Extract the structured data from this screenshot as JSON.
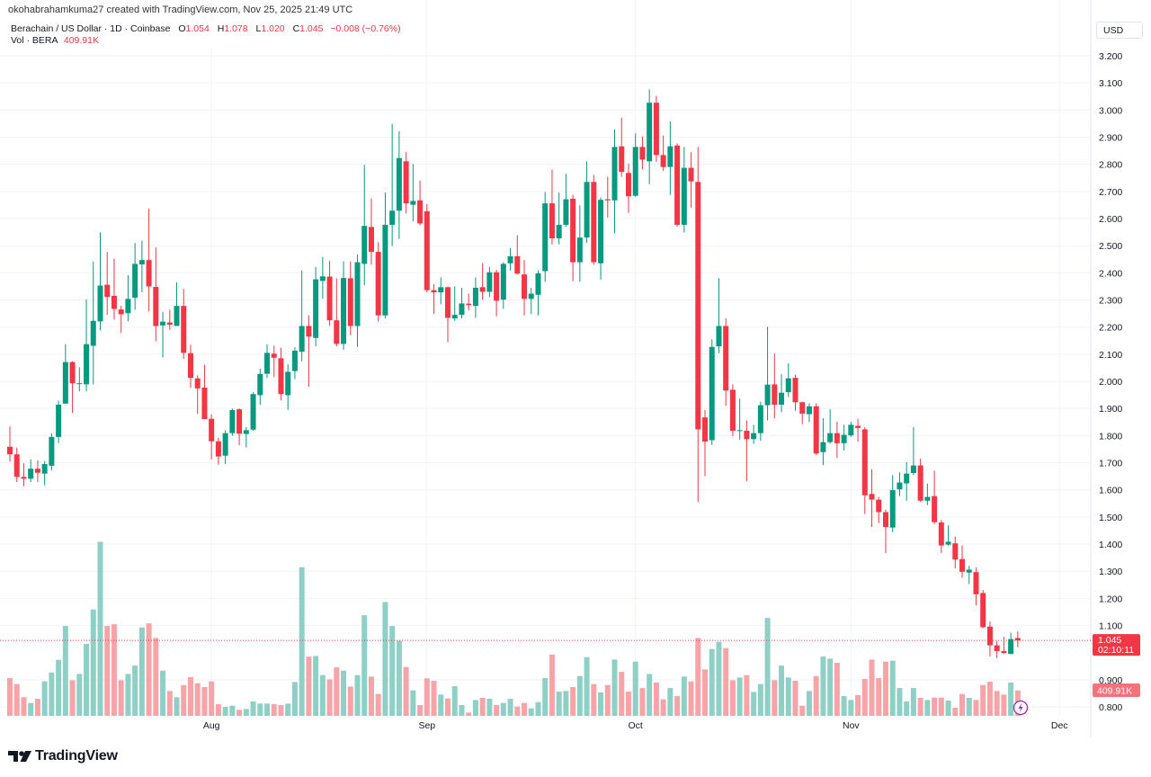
{
  "header": {
    "credit": "okohabrahamkuma27 created with TradingView.com, Nov 25, 2025 21:49 UTC"
  },
  "legend": {
    "symbol": "Berachain / US Dollar · 1D · Coinbase",
    "open_label": "O",
    "open": "1.054",
    "high_label": "H",
    "high": "1.078",
    "low_label": "L",
    "low": "1.020",
    "close_label": "C",
    "close": "1.045",
    "change": "−0.008 (−0.76%)",
    "volume_label": "Vol · BERA",
    "volume": "409.91K"
  },
  "currency_button": "USD",
  "price_label": {
    "price": "1.045",
    "countdown": "02:10:11"
  },
  "volume_label": "409.91K",
  "branding": "TradingView",
  "colors": {
    "up": "#089981",
    "down": "#f23645",
    "volume_up": "#8fd0c6",
    "volume_down": "#f7a4a9",
    "grid": "#f0f3fa",
    "price_line": "#f23645"
  },
  "chart_data": {
    "type": "candlestick",
    "title": "",
    "xlabel": "",
    "ylabel": "",
    "grid": true,
    "y_axis_position": "right",
    "ylim": [
      0.77,
      3.27
    ],
    "y_ticks": [
      "3.200",
      "3.100",
      "3.000",
      "2.900",
      "2.800",
      "2.700",
      "2.600",
      "2.500",
      "2.400",
      "2.300",
      "2.200",
      "2.100",
      "2.000",
      "1.900",
      "1.800",
      "1.700",
      "1.600",
      "1.500",
      "1.400",
      "1.300",
      "1.200",
      "1.100",
      "0.900",
      "0.800"
    ],
    "x_ticks": [
      {
        "label": "Aug",
        "date": "2025-08-01"
      },
      {
        "label": "Sep",
        "date": "2025-09-01"
      },
      {
        "label": "Oct",
        "date": "2025-10-01"
      },
      {
        "label": "Nov",
        "date": "2025-11-01"
      },
      {
        "label": "Dec",
        "date": "2025-12-01"
      }
    ],
    "volume_unit": "K",
    "fields": [
      "date",
      "open",
      "high",
      "low",
      "close",
      "volume"
    ],
    "candles": [
      [
        "2025-07-03",
        1.759,
        1.834,
        1.704,
        1.731,
        609
      ],
      [
        "2025-07-04",
        1.731,
        1.756,
        1.629,
        1.648,
        512
      ],
      [
        "2025-07-05",
        1.648,
        1.698,
        1.613,
        1.641,
        300
      ],
      [
        "2025-07-06",
        1.641,
        1.712,
        1.629,
        1.678,
        208
      ],
      [
        "2025-07-07",
        1.678,
        1.709,
        1.629,
        1.663,
        275
      ],
      [
        "2025-07-08",
        1.66,
        1.706,
        1.617,
        1.695,
        556
      ],
      [
        "2025-07-09",
        1.689,
        1.809,
        1.671,
        1.795,
        700
      ],
      [
        "2025-07-10",
        1.795,
        1.929,
        1.772,
        1.914,
        903
      ],
      [
        "2025-07-11",
        1.918,
        2.137,
        1.918,
        2.071,
        1449
      ],
      [
        "2025-07-12",
        2.071,
        2.074,
        1.883,
        1.993,
        575
      ],
      [
        "2025-07-13",
        1.991,
        2.052,
        1.963,
        1.993,
        676
      ],
      [
        "2025-07-14",
        1.989,
        2.302,
        1.963,
        2.137,
        1159
      ],
      [
        "2025-07-15",
        2.131,
        2.442,
        1.989,
        2.223,
        1715
      ],
      [
        "2025-07-16",
        2.221,
        2.549,
        2.188,
        2.353,
        2806
      ],
      [
        "2025-07-17",
        2.356,
        2.477,
        2.245,
        2.311,
        1449
      ],
      [
        "2025-07-18",
        2.315,
        2.452,
        2.228,
        2.267,
        1478
      ],
      [
        "2025-07-19",
        2.265,
        2.278,
        2.179,
        2.247,
        575
      ],
      [
        "2025-07-20",
        2.251,
        2.391,
        2.221,
        2.304,
        676
      ],
      [
        "2025-07-21",
        2.308,
        2.51,
        2.264,
        2.433,
        811
      ],
      [
        "2025-07-22",
        2.431,
        2.519,
        2.328,
        2.447,
        1425
      ],
      [
        "2025-07-23",
        2.447,
        2.637,
        2.258,
        2.35,
        1492
      ],
      [
        "2025-07-24",
        2.348,
        2.494,
        2.148,
        2.204,
        1256
      ],
      [
        "2025-07-25",
        2.206,
        2.256,
        2.088,
        2.22,
        729
      ],
      [
        "2025-07-26",
        2.217,
        2.264,
        2.19,
        2.209,
        401
      ],
      [
        "2025-07-27",
        2.204,
        2.364,
        2.204,
        2.278,
        300
      ],
      [
        "2025-07-28",
        2.278,
        2.341,
        2.083,
        2.105,
        497
      ],
      [
        "2025-07-29",
        2.104,
        2.135,
        1.977,
        2.013,
        623
      ],
      [
        "2025-07-30",
        2.011,
        2.022,
        1.88,
        1.974,
        526
      ],
      [
        "2025-07-31",
        1.977,
        2.061,
        1.861,
        1.861,
        464
      ],
      [
        "2025-08-01",
        1.862,
        1.878,
        1.712,
        1.779,
        556
      ],
      [
        "2025-08-02",
        1.779,
        1.792,
        1.693,
        1.723,
        188
      ],
      [
        "2025-08-03",
        1.726,
        1.82,
        1.695,
        1.809,
        145
      ],
      [
        "2025-08-04",
        1.809,
        1.9,
        1.8,
        1.894,
        164
      ],
      [
        "2025-08-05",
        1.897,
        1.9,
        1.765,
        1.807,
        97
      ],
      [
        "2025-08-06",
        1.806,
        1.831,
        1.756,
        1.82,
        111
      ],
      [
        "2025-08-07",
        1.822,
        1.96,
        1.818,
        1.953,
        232
      ],
      [
        "2025-08-08",
        1.949,
        2.047,
        1.914,
        2.027,
        198
      ],
      [
        "2025-08-09",
        2.028,
        2.137,
        2.013,
        2.105,
        198
      ],
      [
        "2025-08-10",
        2.102,
        2.132,
        2.015,
        2.087,
        188
      ],
      [
        "2025-08-11",
        2.085,
        2.124,
        1.93,
        1.953,
        174
      ],
      [
        "2025-08-12",
        1.949,
        2.063,
        1.895,
        2.035,
        198
      ],
      [
        "2025-08-13",
        2.038,
        2.126,
        2.008,
        2.113,
        546
      ],
      [
        "2025-08-14",
        2.109,
        2.409,
        2.074,
        2.204,
        2396
      ],
      [
        "2025-08-15",
        2.204,
        2.243,
        1.98,
        2.165,
        956
      ],
      [
        "2025-08-16",
        2.16,
        2.422,
        2.129,
        2.376,
        966
      ],
      [
        "2025-08-17",
        2.37,
        2.459,
        2.304,
        2.387,
        657
      ],
      [
        "2025-08-18",
        2.386,
        2.444,
        2.204,
        2.225,
        589
      ],
      [
        "2025-08-19",
        2.225,
        2.38,
        2.129,
        2.138,
        782
      ],
      [
        "2025-08-20",
        2.138,
        2.442,
        2.116,
        2.381,
        729
      ],
      [
        "2025-08-21",
        2.38,
        2.442,
        2.17,
        2.204,
        473
      ],
      [
        "2025-08-22",
        2.204,
        2.468,
        2.127,
        2.439,
        657
      ],
      [
        "2025-08-23",
        2.433,
        2.798,
        2.354,
        2.573,
        1623
      ],
      [
        "2025-08-24",
        2.569,
        2.674,
        2.43,
        2.477,
        633
      ],
      [
        "2025-08-25",
        2.477,
        2.513,
        2.22,
        2.243,
        353
      ],
      [
        "2025-08-26",
        2.243,
        2.696,
        2.232,
        2.577,
        1835
      ],
      [
        "2025-08-27",
        2.577,
        2.949,
        2.499,
        2.629,
        1449
      ],
      [
        "2025-08-28",
        2.629,
        2.922,
        2.525,
        2.823,
        1212
      ],
      [
        "2025-08-29",
        2.811,
        2.845,
        2.619,
        2.656,
        787
      ],
      [
        "2025-08-30",
        2.651,
        2.801,
        2.59,
        2.665,
        411
      ],
      [
        "2025-08-31",
        2.667,
        2.74,
        2.575,
        2.582,
        174
      ],
      [
        "2025-09-01",
        2.627,
        2.654,
        2.328,
        2.336,
        604
      ],
      [
        "2025-09-02",
        2.336,
        2.358,
        2.248,
        2.328,
        565
      ],
      [
        "2025-09-03",
        2.328,
        2.383,
        2.284,
        2.347,
        343
      ],
      [
        "2025-09-04",
        2.347,
        2.35,
        2.144,
        2.234,
        280
      ],
      [
        "2025-09-05",
        2.232,
        2.35,
        2.223,
        2.245,
        478
      ],
      [
        "2025-09-06",
        2.245,
        2.345,
        2.232,
        2.287,
        174
      ],
      [
        "2025-09-07",
        2.286,
        2.323,
        2.262,
        2.281,
        53
      ],
      [
        "2025-09-08",
        2.278,
        2.383,
        2.234,
        2.345,
        256
      ],
      [
        "2025-09-09",
        2.347,
        2.436,
        2.301,
        2.33,
        290
      ],
      [
        "2025-09-10",
        2.33,
        2.422,
        2.31,
        2.402,
        275
      ],
      [
        "2025-09-11",
        2.402,
        2.411,
        2.24,
        2.297,
        174
      ],
      [
        "2025-09-12",
        2.301,
        2.439,
        2.267,
        2.433,
        208
      ],
      [
        "2025-09-13",
        2.435,
        2.491,
        2.409,
        2.461,
        275
      ],
      [
        "2025-09-14",
        2.461,
        2.538,
        2.394,
        2.397,
        150
      ],
      [
        "2025-09-15",
        2.394,
        2.447,
        2.243,
        2.304,
        208
      ],
      [
        "2025-09-16",
        2.304,
        2.345,
        2.248,
        2.323,
        121
      ],
      [
        "2025-09-17",
        2.319,
        2.409,
        2.243,
        2.398,
        222
      ],
      [
        "2025-09-18",
        2.406,
        2.698,
        2.367,
        2.656,
        609
      ],
      [
        "2025-09-19",
        2.656,
        2.781,
        2.505,
        2.527,
        990
      ],
      [
        "2025-09-20",
        2.527,
        2.696,
        2.505,
        2.577,
        391
      ],
      [
        "2025-09-21",
        2.577,
        2.765,
        2.57,
        2.671,
        401
      ],
      [
        "2025-09-22",
        2.673,
        2.687,
        2.369,
        2.439,
        464
      ],
      [
        "2025-09-23",
        2.439,
        2.649,
        2.367,
        2.53,
        642
      ],
      [
        "2025-09-24",
        2.53,
        2.811,
        2.511,
        2.735,
        947
      ],
      [
        "2025-09-25",
        2.735,
        2.761,
        2.43,
        2.439,
        512
      ],
      [
        "2025-09-26",
        2.435,
        2.678,
        2.375,
        2.669,
        377
      ],
      [
        "2025-09-27",
        2.671,
        2.754,
        2.604,
        2.667,
        497
      ],
      [
        "2025-09-28",
        2.667,
        2.928,
        2.546,
        2.864,
        908
      ],
      [
        "2025-09-29",
        2.866,
        2.972,
        2.754,
        2.772,
        710
      ],
      [
        "2025-09-30",
        2.768,
        2.803,
        2.621,
        2.682,
        391
      ],
      [
        "2025-10-01",
        2.684,
        2.914,
        2.68,
        2.864,
        874
      ],
      [
        "2025-10-02",
        2.864,
        2.903,
        2.781,
        2.817,
        449
      ],
      [
        "2025-10-03",
        2.811,
        3.076,
        2.726,
        3.027,
        676
      ],
      [
        "2025-10-04",
        3.027,
        3.052,
        2.809,
        2.834,
        536
      ],
      [
        "2025-10-05",
        2.834,
        2.905,
        2.776,
        2.79,
        266
      ],
      [
        "2025-10-06",
        2.79,
        2.958,
        2.687,
        2.866,
        449
      ],
      [
        "2025-10-07",
        2.869,
        2.877,
        2.57,
        2.577,
        319
      ],
      [
        "2025-10-08",
        2.577,
        2.864,
        2.549,
        2.787,
        633
      ],
      [
        "2025-10-09",
        2.787,
        2.845,
        2.64,
        2.737,
        556
      ],
      [
        "2025-10-10",
        2.735,
        2.864,
        1.555,
        1.823,
        1256
      ],
      [
        "2025-10-11",
        1.867,
        1.895,
        1.651,
        1.778,
        749
      ],
      [
        "2025-10-12",
        1.783,
        2.155,
        1.765,
        2.127,
        1077
      ],
      [
        "2025-10-13",
        2.129,
        2.38,
        2.104,
        2.204,
        1193
      ],
      [
        "2025-10-14",
        2.204,
        2.232,
        1.91,
        1.966,
        1092
      ],
      [
        "2025-10-15",
        1.969,
        1.989,
        1.798,
        1.818,
        575
      ],
      [
        "2025-10-16",
        1.818,
        1.936,
        1.785,
        1.82,
        618
      ],
      [
        "2025-10-17",
        1.818,
        1.856,
        1.632,
        1.787,
        657
      ],
      [
        "2025-10-18",
        1.787,
        1.84,
        1.77,
        1.809,
        386
      ],
      [
        "2025-10-19",
        1.809,
        1.925,
        1.781,
        1.912,
        512
      ],
      [
        "2025-10-20",
        1.912,
        2.201,
        1.856,
        1.988,
        1579
      ],
      [
        "2025-10-21",
        1.989,
        2.102,
        1.864,
        1.914,
        575
      ],
      [
        "2025-10-22",
        1.914,
        2.027,
        1.886,
        1.958,
        811
      ],
      [
        "2025-10-23",
        1.96,
        2.066,
        1.942,
        2.011,
        618
      ],
      [
        "2025-10-24",
        2.013,
        2.024,
        1.892,
        1.923,
        565
      ],
      [
        "2025-10-25",
        1.923,
        1.925,
        1.842,
        1.881,
        164
      ],
      [
        "2025-10-26",
        1.879,
        1.919,
        1.85,
        1.908,
        401
      ],
      [
        "2025-10-27",
        1.908,
        1.919,
        1.728,
        1.734,
        642
      ],
      [
        "2025-10-28",
        1.739,
        1.864,
        1.691,
        1.776,
        956
      ],
      [
        "2025-10-29",
        1.776,
        1.897,
        1.77,
        1.809,
        922
      ],
      [
        "2025-10-30",
        1.809,
        1.851,
        1.718,
        1.772,
        855
      ],
      [
        "2025-10-31",
        1.772,
        1.84,
        1.745,
        1.803,
        319
      ],
      [
        "2025-11-01",
        1.801,
        1.851,
        1.795,
        1.84,
        256
      ],
      [
        "2025-11-02",
        1.836,
        1.862,
        1.778,
        1.828,
        333
      ],
      [
        "2025-11-03",
        1.823,
        1.831,
        1.511,
        1.58,
        594
      ],
      [
        "2025-11-04",
        1.585,
        1.676,
        1.463,
        1.564,
        908
      ],
      [
        "2025-11-05",
        1.564,
        1.574,
        1.477,
        1.518,
        609
      ],
      [
        "2025-11-06",
        1.518,
        1.527,
        1.367,
        1.463,
        874
      ],
      [
        "2025-11-07",
        1.461,
        1.654,
        1.444,
        1.599,
        889
      ],
      [
        "2025-11-08",
        1.602,
        1.665,
        1.577,
        1.627,
        449
      ],
      [
        "2025-11-09",
        1.624,
        1.702,
        1.56,
        1.66,
        232
      ],
      [
        "2025-11-10",
        1.662,
        1.831,
        1.654,
        1.69,
        449
      ],
      [
        "2025-11-11",
        1.69,
        1.715,
        1.555,
        1.56,
        290
      ],
      [
        "2025-11-12",
        1.56,
        1.623,
        1.544,
        1.574,
        256
      ],
      [
        "2025-11-13",
        1.577,
        1.671,
        1.474,
        1.481,
        295
      ],
      [
        "2025-11-14",
        1.48,
        1.489,
        1.367,
        1.395,
        295
      ],
      [
        "2025-11-15",
        1.398,
        1.469,
        1.395,
        1.409,
        246
      ],
      [
        "2025-11-16",
        1.403,
        1.428,
        1.31,
        1.343,
        130
      ],
      [
        "2025-11-17",
        1.345,
        1.395,
        1.276,
        1.298,
        353
      ],
      [
        "2025-11-18",
        1.295,
        1.32,
        1.253,
        1.306,
        290
      ],
      [
        "2025-11-19",
        1.297,
        1.314,
        1.174,
        1.215,
        256
      ],
      [
        "2025-11-20",
        1.22,
        1.231,
        1.09,
        1.094,
        497
      ],
      [
        "2025-11-21",
        1.096,
        1.115,
        0.986,
        1.027,
        551
      ],
      [
        "2025-11-22",
        1.027,
        1.043,
        0.98,
        1.006,
        401
      ],
      [
        "2025-11-23",
        1.006,
        1.058,
        0.995,
        0.999,
        343
      ],
      [
        "2025-11-24",
        0.995,
        1.074,
        0.995,
        1.05,
        536
      ],
      [
        "2025-11-25",
        1.054,
        1.078,
        1.02,
        1.045,
        409.91
      ]
    ]
  }
}
